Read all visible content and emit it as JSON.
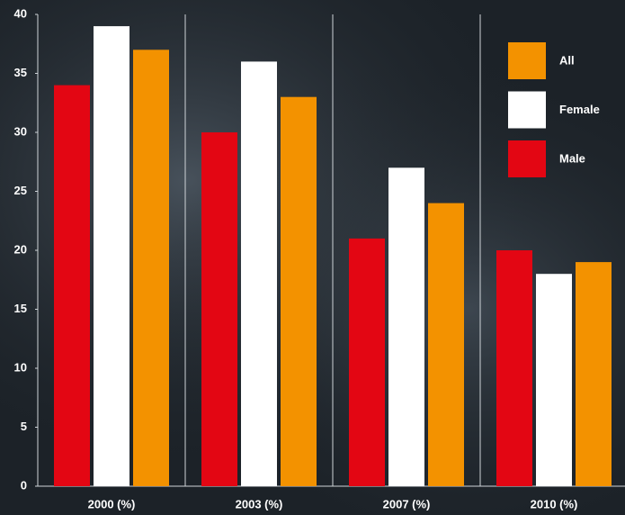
{
  "chart_data": {
    "type": "bar",
    "categories": [
      "2000 (%)",
      "2003 (%)",
      "2007 (%)",
      "2010 (%)"
    ],
    "series": [
      {
        "name": "Male",
        "color": "#e30613",
        "values": [
          34,
          30,
          21,
          20
        ]
      },
      {
        "name": "Female",
        "color": "#ffffff",
        "values": [
          39,
          36,
          27,
          18
        ]
      },
      {
        "name": "All",
        "color": "#f39200",
        "values": [
          37,
          33,
          24,
          19
        ]
      }
    ],
    "ylim": [
      0,
      40
    ],
    "yticks": [
      0,
      5,
      10,
      15,
      20,
      25,
      30,
      35,
      40
    ]
  }
}
